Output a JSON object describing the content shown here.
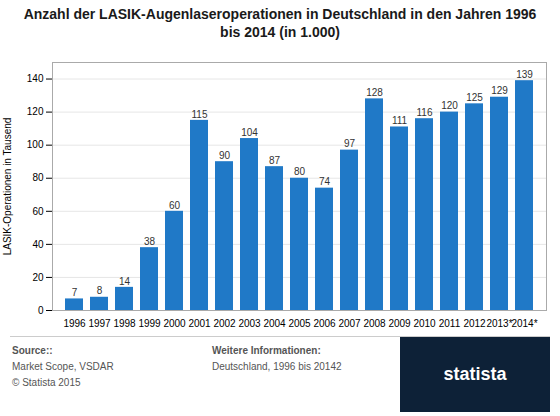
{
  "chart_data": {
    "type": "bar",
    "title": "Anzahl der LASIK-Augenlaseroperationen in Deutschland in den Jahren 1996\nbis 2014 (in 1.000)",
    "y_label": "LASIK-Operationen in Tausend",
    "categories": [
      "1996",
      "1997",
      "1998",
      "1999",
      "2000",
      "2001",
      "2002",
      "2003",
      "2004",
      "2005",
      "2006",
      "2007",
      "2008",
      "2009",
      "2010",
      "2011",
      "2012",
      "2013*",
      "2014*"
    ],
    "values": [
      7,
      8,
      14,
      38,
      60,
      115,
      90,
      104,
      87,
      80,
      74,
      97,
      128,
      111,
      116,
      120,
      125,
      129,
      139
    ],
    "color": "#2079c7",
    "ylim": [
      0,
      150
    ],
    "yticks": [
      0,
      20,
      40,
      60,
      80,
      100,
      120,
      140
    ],
    "grid": true,
    "data_labels": true,
    "annotations": [
      "Source::",
      "Market Scope, VSDAR",
      "© Statista 2015",
      "Weitere Informationen:",
      "Deutschland, 1996 bis 20142",
      "statista"
    ]
  }
}
